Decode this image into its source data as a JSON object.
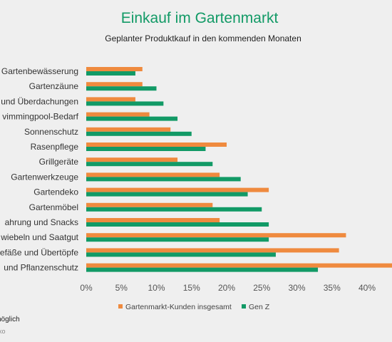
{
  "chart_data": {
    "type": "bar",
    "orientation": "horizontal",
    "title": "Einkauf im Gartenmarkt",
    "subtitle": "Geplanter Produktkauf in den kommenden Monaten",
    "categories": [
      "Gartenbewässerung",
      "Gartenzäune",
      "und Überdachungen",
      "vimmingpool-Bedarf",
      "Sonnenschutz",
      "Rasenpflege",
      "Grillgeräte",
      "Gartenwerkzeuge",
      "Gartendeko",
      "Gartenmöbel",
      "ahrung und Snacks",
      "wiebeln und Saatgut",
      "efäße und Übertöpfe",
      "und Pflanzenschutz"
    ],
    "series": [
      {
        "name": "Gartenmarkt-Kunden insgesamt",
        "color": "#ef8a3e",
        "values": [
          8,
          8,
          7,
          9,
          12,
          20,
          13,
          19,
          26,
          18,
          19,
          37,
          36,
          44
        ]
      },
      {
        "name": "Gen Z",
        "color": "#129a66",
        "values": [
          7,
          10,
          11,
          13,
          15,
          17,
          18,
          22,
          23,
          25,
          26,
          26,
          27,
          33
        ]
      }
    ],
    "xticks": [
      "0%",
      "5%",
      "10%",
      "15%",
      "20%",
      "25%",
      "30%",
      "35%",
      "40%"
    ],
    "xlim": [
      0,
      43
    ],
    "grid": false,
    "legend_position": "bottom",
    "footnote": "nöglich",
    "source": "xo"
  }
}
